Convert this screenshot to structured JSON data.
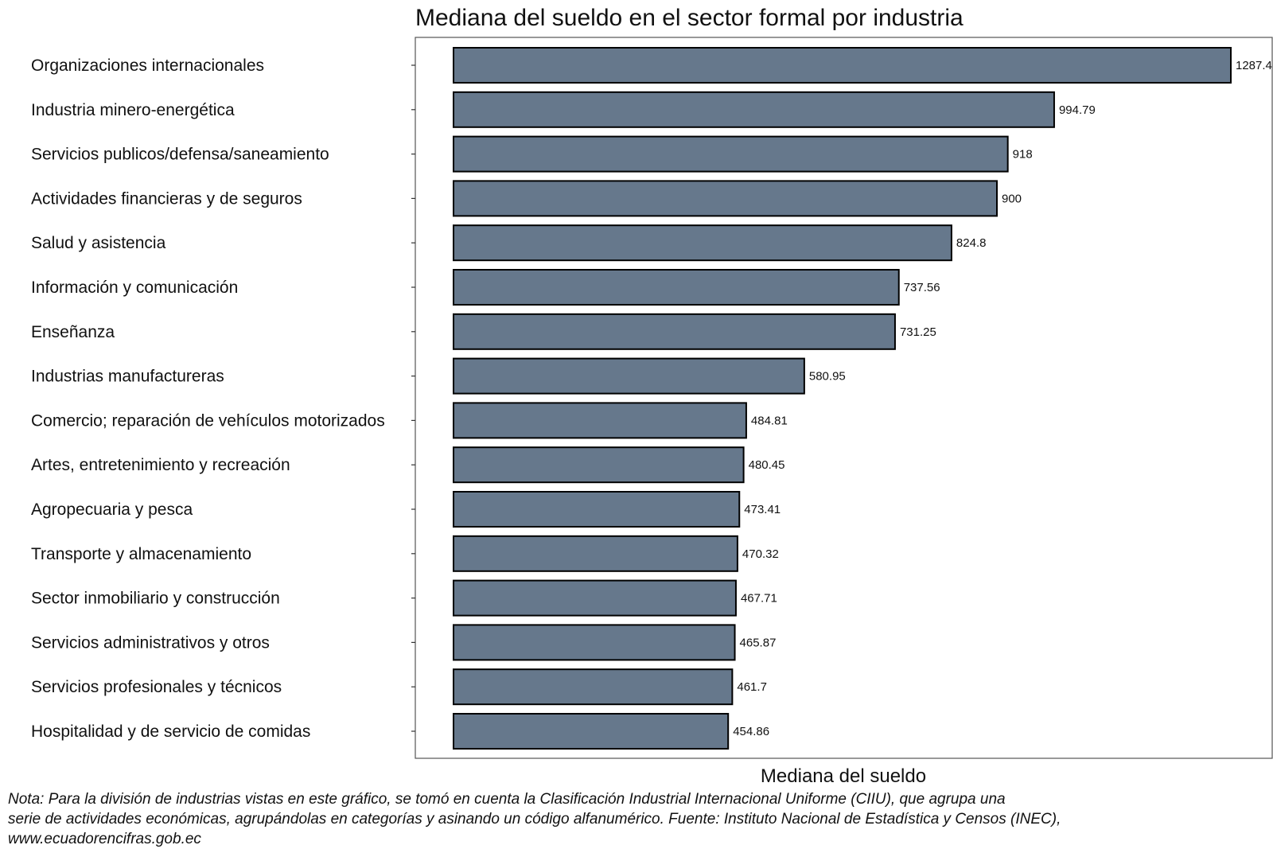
{
  "chart_data": {
    "type": "bar",
    "orientation": "horizontal",
    "title": "Mediana del sueldo en el sector formal por industria",
    "xlabel": "Mediana del sueldo",
    "ylabel": "",
    "xlim": [
      0,
      1287.4
    ],
    "grid": false,
    "legend": "none",
    "categories": [
      "Organizaciones internacionales",
      "Industria minero-energética",
      "Servicios publicos/defensa/saneamiento",
      "Actividades financieras y de seguros",
      "Salud y asistencia",
      "Información y comunicación",
      "Enseñanza",
      "Industrias manufactureras",
      "Comercio; reparación de vehículos motorizados",
      "Artes, entretenimiento y recreación",
      "Agropecuaria y pesca",
      "Transporte y almacenamiento",
      "Sector inmobiliario y construcción",
      "Servicios administrativos y otros",
      "Servicios profesionales y técnicos",
      "Hospitalidad y de servicio de comidas"
    ],
    "values": [
      1287.4,
      994.79,
      918,
      900,
      824.8,
      737.56,
      731.25,
      580.95,
      484.81,
      480.45,
      473.41,
      470.32,
      467.71,
      465.87,
      461.7,
      454.86
    ],
    "value_labels": [
      "1287.4",
      "994.79",
      "918",
      "900",
      "824.8",
      "737.56",
      "731.25",
      "580.95",
      "484.81",
      "480.45",
      "473.41",
      "470.32",
      "467.71",
      "465.87",
      "461.7",
      "454.86"
    ],
    "bar_color": "#66788c"
  },
  "note_lines": [
    "Nota: Para la división de industrias vistas en este gráfico, se tomó en cuenta la Clasificación Industrial Internacional Uniforme (CIIU), que agrupa una",
    "serie de actividades económicas, agrupándolas en categorías y asinando un código alfanumérico. Fuente: Instituto Nacional de Estadística y Censos (INEC),",
    "www.ecuadorencifras.gob.ec"
  ]
}
